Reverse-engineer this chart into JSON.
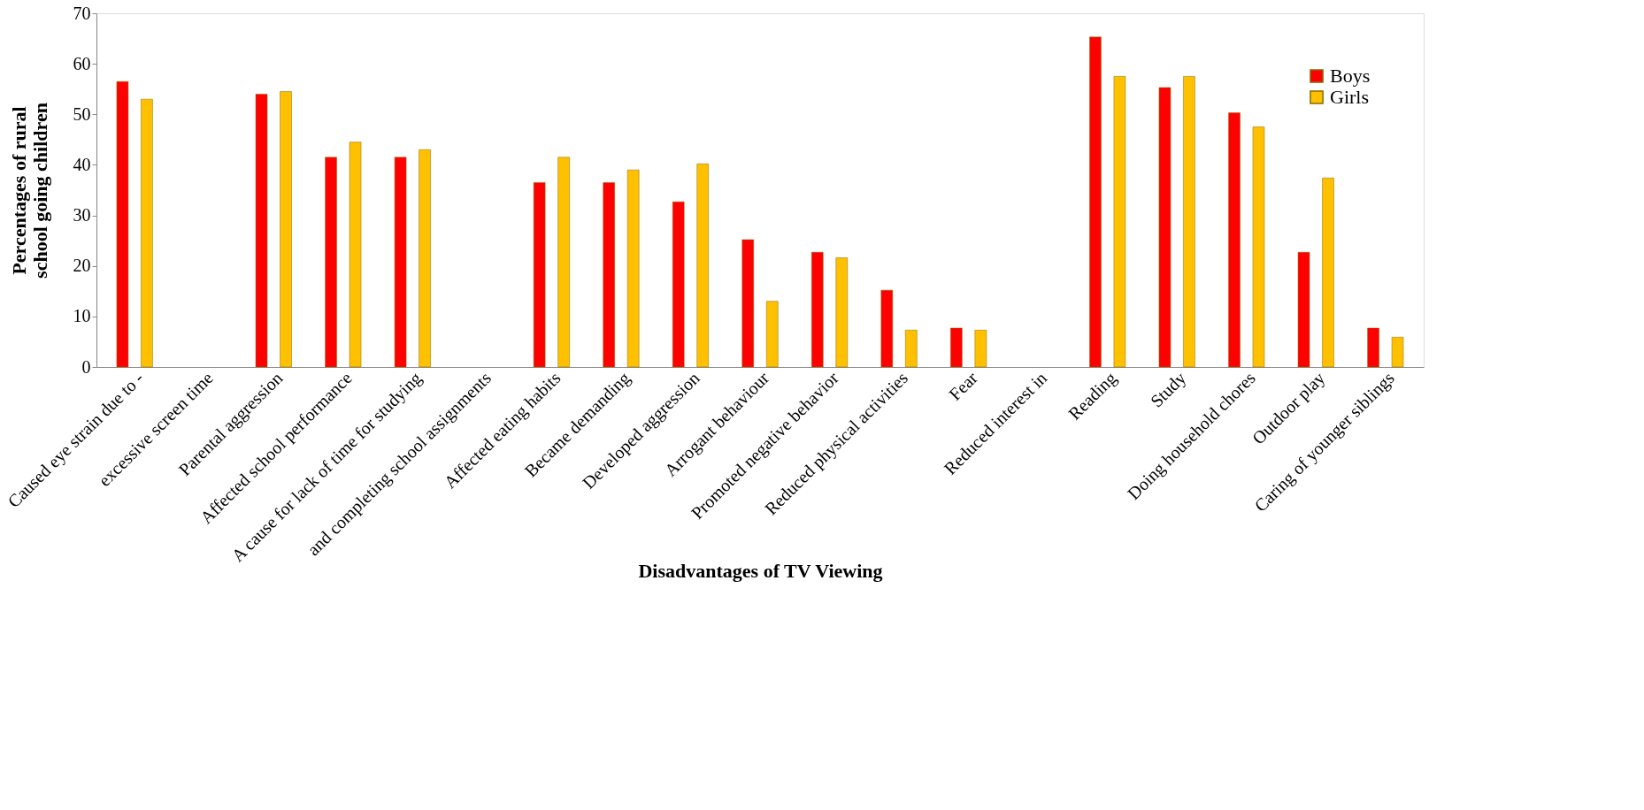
{
  "chart_data": {
    "type": "bar",
    "xlabel": "Disadvantages of TV Viewing",
    "ylabel": "Percentages of rural school going children",
    "categories": [
      "Caused eye strain due to -",
      "excessive screen time",
      "Parental aggression",
      "Affected school performance",
      "A cause for lack of time for studying",
      "and completing school assignments",
      "Affected eating habits",
      "Became demanding",
      "Developed aggression",
      "Arrogant behaviour",
      "Promoted negative behavior",
      "Reduced physical activities",
      "Fear",
      "Reduced interest in",
      "Reading",
      "Study",
      "Doing household chores",
      "Outdoor play",
      "Caring of younger siblings"
    ],
    "series": [
      {
        "name": "Boys",
        "color": "#ff0000",
        "values": [
          56.5,
          null,
          54,
          41.5,
          41.5,
          null,
          36.5,
          36.5,
          32.7,
          25.2,
          22.7,
          15.2,
          7.7,
          null,
          65.3,
          55.3,
          50.3,
          22.7,
          7.7
        ]
      },
      {
        "name": "Girls",
        "color": "#ffc000",
        "values": [
          53,
          null,
          54.5,
          44.5,
          43,
          null,
          41.5,
          39,
          40.2,
          13,
          21.6,
          7.3,
          7.3,
          null,
          57.5,
          57.5,
          47.5,
          37.4,
          5.9
        ]
      }
    ],
    "ylim": [
      0,
      70
    ],
    "yticks": [
      0,
      10,
      20,
      30,
      40,
      50,
      60,
      70
    ],
    "grid": false,
    "legend": "top right"
  }
}
